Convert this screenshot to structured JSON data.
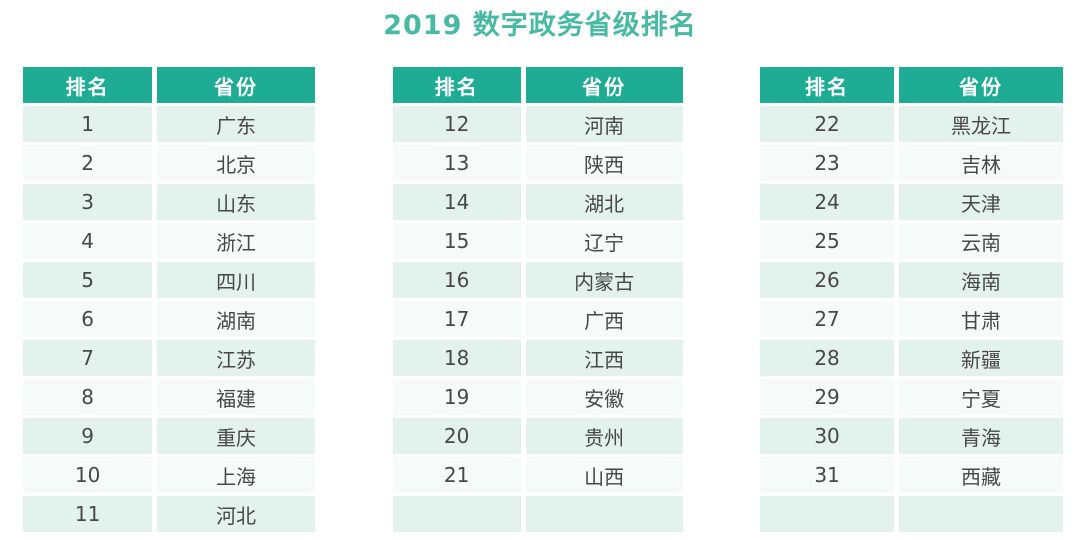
{
  "title": "2019 数字政务省级排名",
  "colors": {
    "header_bg": "#1ead94",
    "header_text": "#ffffff",
    "row_odd": "#e3f2ed",
    "row_even": "#f6faf9",
    "title_color": "#48b9a2",
    "body_text": "#484848"
  },
  "tables": [
    {
      "columns": [
        "排名",
        "省份"
      ],
      "rows": [
        [
          "1",
          "广东"
        ],
        [
          "2",
          "北京"
        ],
        [
          "3",
          "山东"
        ],
        [
          "4",
          "浙江"
        ],
        [
          "5",
          "四川"
        ],
        [
          "6",
          "湖南"
        ],
        [
          "7",
          "江苏"
        ],
        [
          "8",
          "福建"
        ],
        [
          "9",
          "重庆"
        ],
        [
          "10",
          "上海"
        ],
        [
          "11",
          "河北"
        ]
      ]
    },
    {
      "columns": [
        "排名",
        "省份"
      ],
      "rows": [
        [
          "12",
          "河南"
        ],
        [
          "13",
          "陕西"
        ],
        [
          "14",
          "湖北"
        ],
        [
          "15",
          "辽宁"
        ],
        [
          "16",
          "内蒙古"
        ],
        [
          "17",
          "广西"
        ],
        [
          "18",
          "江西"
        ],
        [
          "19",
          "安徽"
        ],
        [
          "20",
          "贵州"
        ],
        [
          "21",
          "山西"
        ],
        [
          "",
          ""
        ]
      ]
    },
    {
      "columns": [
        "排名",
        "省份"
      ],
      "rows": [
        [
          "22",
          "黑龙江"
        ],
        [
          "23",
          "吉林"
        ],
        [
          "24",
          "天津"
        ],
        [
          "25",
          "云南"
        ],
        [
          "26",
          "海南"
        ],
        [
          "27",
          "甘肃"
        ],
        [
          "28",
          "新疆"
        ],
        [
          "29",
          "宁夏"
        ],
        [
          "30",
          "青海"
        ],
        [
          "31",
          "西藏"
        ],
        [
          "",
          ""
        ]
      ]
    }
  ],
  "chart_data": {
    "type": "table",
    "title": "2019 数字政务省级排名",
    "columns": [
      "排名",
      "省份"
    ],
    "layout": "three side-by-side tables, ranks 1-11 / 12-21 / 22-31",
    "rows": [
      [
        1,
        "广东"
      ],
      [
        2,
        "北京"
      ],
      [
        3,
        "山东"
      ],
      [
        4,
        "浙江"
      ],
      [
        5,
        "四川"
      ],
      [
        6,
        "湖南"
      ],
      [
        7,
        "江苏"
      ],
      [
        8,
        "福建"
      ],
      [
        9,
        "重庆"
      ],
      [
        10,
        "上海"
      ],
      [
        11,
        "河北"
      ],
      [
        12,
        "河南"
      ],
      [
        13,
        "陕西"
      ],
      [
        14,
        "湖北"
      ],
      [
        15,
        "辽宁"
      ],
      [
        16,
        "内蒙古"
      ],
      [
        17,
        "广西"
      ],
      [
        18,
        "江西"
      ],
      [
        19,
        "安徽"
      ],
      [
        20,
        "贵州"
      ],
      [
        21,
        "山西"
      ],
      [
        22,
        "黑龙江"
      ],
      [
        23,
        "吉林"
      ],
      [
        24,
        "天津"
      ],
      [
        25,
        "云南"
      ],
      [
        26,
        "海南"
      ],
      [
        27,
        "甘肃"
      ],
      [
        28,
        "新疆"
      ],
      [
        29,
        "宁夏"
      ],
      [
        30,
        "青海"
      ],
      [
        31,
        "西藏"
      ]
    ]
  }
}
